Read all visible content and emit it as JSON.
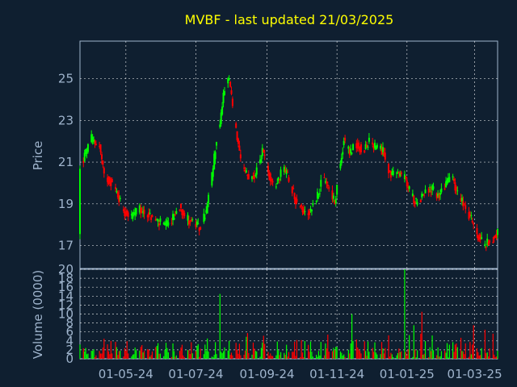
{
  "chart_data": [
    {
      "type": "candlestick",
      "title": "MVBF - last updated 21/03/2025",
      "ylabel": "Price",
      "ylim": [
        15.9,
        26.8
      ],
      "yticks": [
        17,
        19,
        21,
        23,
        25
      ],
      "xticks": [
        "01-05-24",
        "01-07-24",
        "01-09-24",
        "01-11-24",
        "01-01-25",
        "01-03-25"
      ],
      "xrange": [
        "2024-03-22",
        "2025-03-21"
      ],
      "grid": true,
      "colors": {
        "up": "#00ff00",
        "down": "#ff0000",
        "background": "#0f1f30",
        "grid": "#ffffff",
        "axis": "#9fb4cc",
        "title": "#ffff00"
      },
      "price_path": [
        [
          "2024-03-22",
          20.6
        ],
        [
          "2024-03-26",
          21.3
        ],
        [
          "2024-04-01",
          22.1
        ],
        [
          "2024-04-08",
          21.8
        ],
        [
          "2024-04-12",
          20.3
        ],
        [
          "2024-04-18",
          20.1
        ],
        [
          "2024-04-24",
          19.4
        ],
        [
          "2024-04-30",
          18.6
        ],
        [
          "2024-05-06",
          18.4
        ],
        [
          "2024-05-12",
          18.7
        ],
        [
          "2024-05-18",
          18.6
        ],
        [
          "2024-05-24",
          18.3
        ],
        [
          "2024-05-30",
          18.1
        ],
        [
          "2024-06-05",
          17.9
        ],
        [
          "2024-06-11",
          18.3
        ],
        [
          "2024-06-17",
          18.9
        ],
        [
          "2024-06-23",
          18.3
        ],
        [
          "2024-06-29",
          18.1
        ],
        [
          "2024-07-04",
          17.8
        ],
        [
          "2024-07-10",
          18.6
        ],
        [
          "2024-07-15",
          20.3
        ],
        [
          "2024-07-18",
          21.7
        ],
        [
          "2024-07-22",
          22.9
        ],
        [
          "2024-07-26",
          24.6
        ],
        [
          "2024-07-30",
          24.9
        ],
        [
          "2024-08-04",
          22.8
        ],
        [
          "2024-08-08",
          21.3
        ],
        [
          "2024-08-12",
          20.5
        ],
        [
          "2024-08-18",
          20.2
        ],
        [
          "2024-08-24",
          20.6
        ],
        [
          "2024-08-28",
          21.6
        ],
        [
          "2024-09-02",
          20.5
        ],
        [
          "2024-09-08",
          19.8
        ],
        [
          "2024-09-14",
          20.7
        ],
        [
          "2024-09-20",
          20.3
        ],
        [
          "2024-09-26",
          19.2
        ],
        [
          "2024-10-02",
          18.7
        ],
        [
          "2024-10-08",
          18.6
        ],
        [
          "2024-10-14",
          19.3
        ],
        [
          "2024-10-20",
          20.2
        ],
        [
          "2024-10-26",
          19.7
        ],
        [
          "2024-10-30",
          19.0
        ],
        [
          "2024-11-03",
          20.6
        ],
        [
          "2024-11-07",
          22.1
        ],
        [
          "2024-11-12",
          21.4
        ],
        [
          "2024-11-18",
          21.9
        ],
        [
          "2024-11-24",
          21.6
        ],
        [
          "2024-11-30",
          22.0
        ],
        [
          "2024-12-06",
          21.6
        ],
        [
          "2024-12-12",
          21.5
        ],
        [
          "2024-12-18",
          20.3
        ],
        [
          "2024-12-24",
          20.5
        ],
        [
          "2024-12-30",
          20.2
        ],
        [
          "2025-01-05",
          19.4
        ],
        [
          "2025-01-10",
          19.0
        ],
        [
          "2025-01-16",
          19.6
        ],
        [
          "2025-01-22",
          19.7
        ],
        [
          "2025-01-28",
          19.4
        ],
        [
          "2025-02-03",
          19.9
        ],
        [
          "2025-02-09",
          20.3
        ],
        [
          "2025-02-14",
          19.5
        ],
        [
          "2025-02-20",
          19.0
        ],
        [
          "2025-02-26",
          18.2
        ],
        [
          "2025-03-04",
          17.5
        ],
        [
          "2025-03-10",
          17.0
        ],
        [
          "2025-03-16",
          17.3
        ],
        [
          "2025-03-21",
          17.6
        ]
      ]
    },
    {
      "type": "bar",
      "ylabel": "Volume (0000)",
      "ylim": [
        0,
        20
      ],
      "yticks": [
        0,
        2,
        4,
        6,
        8,
        10,
        12,
        14,
        16,
        18,
        20
      ],
      "xticks": [
        "01-05-24",
        "01-07-24",
        "01-09-24",
        "01-11-24",
        "01-01-25",
        "01-03-25"
      ],
      "grid": true,
      "spikes": [
        [
          "2024-07-22",
          14.5,
          "up"
        ],
        [
          "2024-08-10",
          8.5,
          "up"
        ],
        [
          "2024-11-02",
          8.5,
          "up"
        ],
        [
          "2024-11-14",
          10.0,
          "up"
        ],
        [
          "2024-12-30",
          20.0,
          "up"
        ],
        [
          "2025-01-07",
          7.5,
          "up"
        ],
        [
          "2025-01-14",
          10.5,
          "down"
        ],
        [
          "2025-02-28",
          7.5,
          "down"
        ],
        [
          "2025-03-10",
          6.5,
          "down"
        ]
      ]
    }
  ]
}
